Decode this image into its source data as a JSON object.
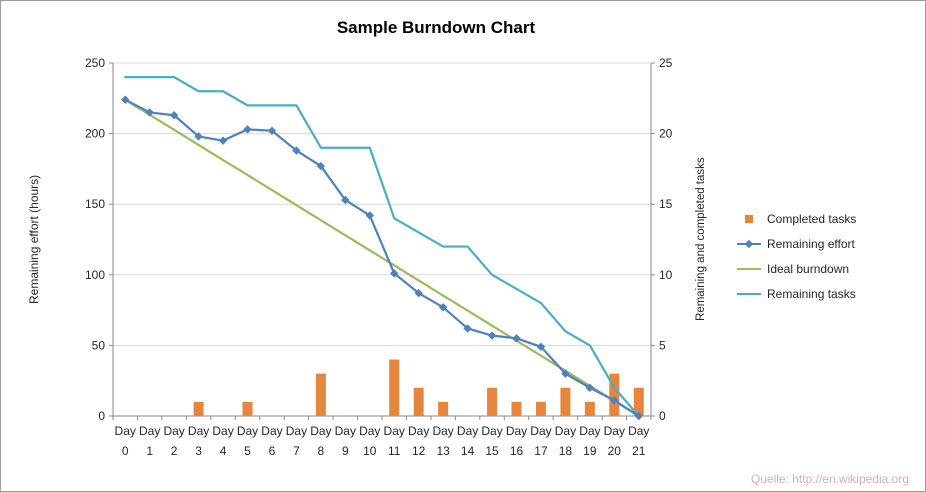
{
  "source_note": "Quelle: http://en.wikipedia.org",
  "chart_data": {
    "type": "combo",
    "title": "Sample Burndown Chart",
    "categories": [
      "Day 0",
      "Day 1",
      "Day 2",
      "Day 3",
      "Day 4",
      "Day 5",
      "Day 6",
      "Day 7",
      "Day 8",
      "Day 9",
      "Day 10",
      "Day 11",
      "Day 12",
      "Day 13",
      "Day 14",
      "Day 15",
      "Day 16",
      "Day 17",
      "Day 18",
      "Day 19",
      "Day 20",
      "Day 21"
    ],
    "axes": {
      "left": {
        "label": "Remaining effort (hours)",
        "min": 0,
        "max": 250,
        "step": 50
      },
      "right": {
        "label": "Remaining and completed tasks",
        "min": 0,
        "max": 25,
        "step": 5
      }
    },
    "grid": "horizontal",
    "legend_position": "right",
    "legend": [
      "Completed tasks",
      "Remaining effort",
      "Ideal burndown",
      "Remaining tasks"
    ],
    "series": [
      {
        "name": "Completed tasks",
        "type": "bar",
        "axis": "right",
        "color": "#E6863C",
        "values": [
          0,
          0,
          0,
          1,
          0,
          1,
          0,
          0,
          3,
          0,
          0,
          4,
          2,
          1,
          0,
          2,
          1,
          1,
          2,
          1,
          3,
          2
        ]
      },
      {
        "name": "Remaining effort",
        "type": "line",
        "marker": "diamond",
        "axis": "left",
        "color": "#4F81BD",
        "values": [
          224,
          215,
          213,
          198,
          195,
          203,
          202,
          188,
          177,
          153,
          142,
          101,
          87,
          77,
          62,
          57,
          55,
          49,
          30,
          20,
          11,
          0
        ]
      },
      {
        "name": "Ideal burndown",
        "type": "line",
        "axis": "left",
        "color": "#9BBB59",
        "values": [
          224,
          213.3,
          202.7,
          192,
          181.3,
          170.7,
          160,
          149.3,
          138.7,
          128,
          117.3,
          106.7,
          96,
          85.3,
          74.7,
          64,
          53.3,
          42.7,
          32,
          21.3,
          10.7,
          0
        ]
      },
      {
        "name": "Remaining tasks",
        "type": "line",
        "axis": "right",
        "color": "#4BACC6",
        "values": [
          24,
          24,
          24,
          23,
          23,
          22,
          22,
          22,
          19,
          19,
          19,
          14,
          13,
          12,
          12,
          10,
          9,
          8,
          6,
          5,
          2,
          0
        ]
      }
    ],
    "colors": {
      "gridline": "#D9D9D9",
      "axis_line": "#8A8A8A",
      "text": "#262626"
    }
  }
}
